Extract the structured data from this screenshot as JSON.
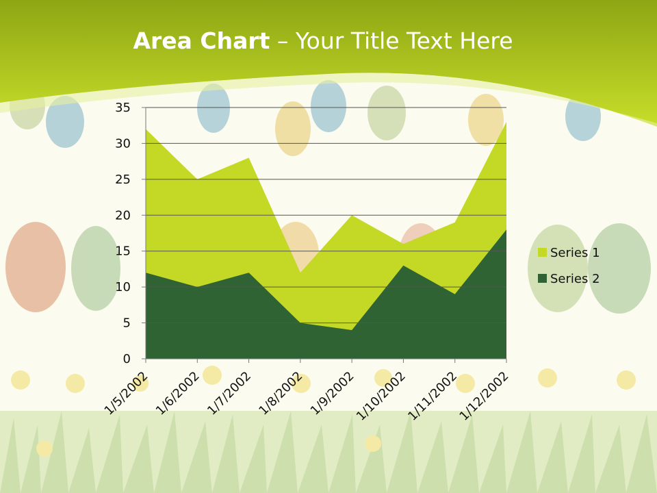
{
  "slide": {
    "title_bold": "Area Chart",
    "title_rest": " – Your Title Text Here"
  },
  "colors": {
    "header_dark": "#8ea614",
    "header_light": "#c8de2a",
    "background": "#fbfcef",
    "series1": "#c4d925",
    "series2": "#306333",
    "gridline": "#555555"
  },
  "decorations": {
    "egg-icon": "easter-egg",
    "flower-icon": "daffodil"
  },
  "chart_data": {
    "type": "area",
    "stacked": false,
    "x": [
      "1/5/2002",
      "1/6/2002",
      "1/7/2002",
      "1/8/2002",
      "1/9/2002",
      "1/10/2002",
      "1/11/2002",
      "1/12/2002"
    ],
    "series": [
      {
        "name": "Series 1",
        "values": [
          32,
          25,
          28,
          12,
          20,
          16,
          19,
          33
        ],
        "color": "#c4d925"
      },
      {
        "name": "Series 2",
        "values": [
          12,
          10,
          12,
          5,
          4,
          13,
          9,
          18
        ],
        "color": "#306333"
      }
    ],
    "yticks": [
      "0",
      "5",
      "10",
      "15",
      "20",
      "25",
      "30",
      "35"
    ],
    "ylim": [
      0,
      35
    ],
    "grid": true,
    "legend": "right"
  }
}
